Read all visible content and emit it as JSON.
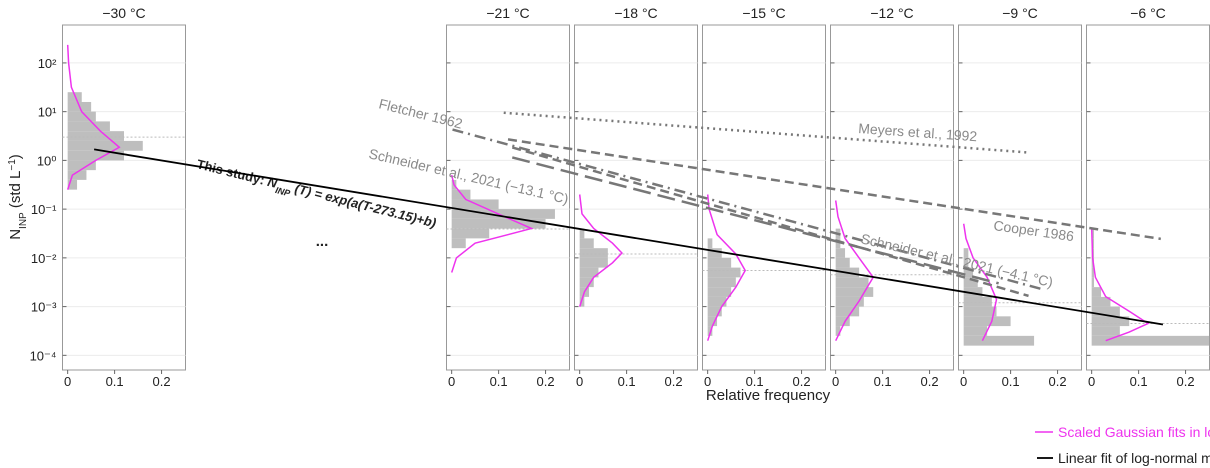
{
  "chart_data": {
    "type": "histogram",
    "ylabel": {
      "text": "N",
      "subscript": "INP",
      "unit": " (std L",
      "superscript": "−1",
      "close": ")"
    },
    "xlabel": "Relative frequency",
    "ylim": [
      5e-05,
      600
    ],
    "yticks": [
      {
        "value": 0.0001,
        "label": "10⁻⁴"
      },
      {
        "value": 0.001,
        "label": "10⁻³"
      },
      {
        "value": 0.01,
        "label": "10⁻²"
      },
      {
        "value": 0.1,
        "label": "10⁻¹"
      },
      {
        "value": 1,
        "label": "10⁰"
      },
      {
        "value": 10,
        "label": "10¹"
      },
      {
        "value": 100,
        "label": "10²"
      }
    ],
    "log_scale": true,
    "grid": true,
    "xlim": [
      -0.011,
      0.251
    ],
    "xticks": [
      0,
      0.1,
      0.2
    ],
    "bar_color": "#bebebe",
    "fit_color": "#ee33ee",
    "median_color": "#bbbbbb",
    "panels": [
      {
        "title": "−30 °C",
        "temperature": -30,
        "median": 3,
        "bins": [
          0.251,
          0.398,
          0.631,
          1,
          1.58,
          2.51,
          3.98,
          6.31,
          10,
          15.8,
          25.1
        ],
        "counts": [
          0.02,
          0.04,
          0.06,
          0.12,
          0.16,
          0.12,
          0.09,
          0.06,
          0.05,
          0.03
        ],
        "fit": {
          "values": [
            0.251,
            0.5,
            1,
            1.86,
            3.98,
            10,
            31.6,
            100,
            234
          ],
          "frequency": [
            0,
            0.01,
            0.06,
            0.11,
            0.07,
            0.03,
            0.008,
            0.002,
            0
          ]
        }
      },
      {
        "title": "−21 °C",
        "temperature": -21,
        "median": 0.039,
        "bins": [
          0.0158,
          0.0251,
          0.0398,
          0.0631,
          0.1,
          0.158,
          0.251,
          0.398
        ],
        "counts": [
          0.03,
          0.08,
          0.2,
          0.22,
          0.1,
          0.04,
          0.01
        ],
        "fit": {
          "values": [
            0.005,
            0.01,
            0.02,
            0.04,
            0.079,
            0.158,
            0.316,
            0.5
          ],
          "frequency": [
            0,
            0.01,
            0.05,
            0.17,
            0.1,
            0.03,
            0.005,
            0
          ]
        }
      },
      {
        "title": "−18 °C",
        "temperature": -18,
        "median": 0.012,
        "bins": [
          0.001,
          0.00158,
          0.00251,
          0.00398,
          0.00631,
          0.01,
          0.0158,
          0.0251,
          0.0398
        ],
        "counts": [
          0.01,
          0.02,
          0.03,
          0.04,
          0.06,
          0.06,
          0.03,
          0.01
        ],
        "fit": {
          "values": [
            0.001,
            0.002,
            0.004,
            0.0079,
            0.0126,
            0.02,
            0.04,
            0.08,
            0.2
          ],
          "frequency": [
            0,
            0.01,
            0.03,
            0.07,
            0.09,
            0.07,
            0.03,
            0.005,
            0
          ]
        }
      },
      {
        "title": "−15 °C",
        "temperature": -15,
        "median": 0.0055,
        "bins": [
          0.000251,
          0.000398,
          0.000631,
          0.001,
          0.00158,
          0.00251,
          0.00398,
          0.00631,
          0.01,
          0.0158,
          0.0251
        ],
        "counts": [
          0.01,
          0.02,
          0.03,
          0.04,
          0.05,
          0.06,
          0.07,
          0.05,
          0.03,
          0.01
        ],
        "fit": {
          "values": [
            0.0002,
            0.0004,
            0.001,
            0.0025,
            0.0055,
            0.012,
            0.03,
            0.1,
            0.2
          ],
          "frequency": [
            0,
            0.01,
            0.03,
            0.06,
            0.08,
            0.06,
            0.02,
            0.003,
            0
          ]
        }
      },
      {
        "title": "−12 °C",
        "temperature": -12,
        "median": 0.0045,
        "bins": [
          0.000251,
          0.000398,
          0.000631,
          0.001,
          0.00158,
          0.00251,
          0.00398,
          0.00631,
          0.01,
          0.0158,
          0.0251,
          0.0398
        ],
        "counts": [
          0.01,
          0.03,
          0.05,
          0.06,
          0.08,
          0.07,
          0.05,
          0.03,
          0.02,
          0.01,
          0.01
        ],
        "fit": {
          "values": [
            0.0002,
            0.0005,
            0.0013,
            0.004,
            0.01,
            0.025,
            0.07,
            0.15
          ],
          "frequency": [
            0,
            0.02,
            0.05,
            0.08,
            0.05,
            0.02,
            0.005,
            0
          ]
        }
      },
      {
        "title": "−9 °C",
        "temperature": -9,
        "median": 0.0012,
        "bins": [
          0.000158,
          0.000251,
          0.000398,
          0.000631,
          0.001,
          0.00158,
          0.00251,
          0.00398,
          0.00631,
          0.01,
          0.0158
        ],
        "counts": [
          0.15,
          0.05,
          0.1,
          0.07,
          0.06,
          0.04,
          0.03,
          0.02,
          0.01,
          0.01
        ],
        "fit": {
          "values": [
            0.0002,
            0.0005,
            0.0014,
            0.004,
            0.01,
            0.025,
            0.05
          ],
          "frequency": [
            0.04,
            0.06,
            0.07,
            0.05,
            0.02,
            0.005,
            0
          ]
        }
      },
      {
        "title": "−6 °C",
        "temperature": -6,
        "median": 0.00045,
        "bins": [
          0.000158,
          0.000251,
          0.000398,
          0.000631,
          0.001,
          0.00158,
          0.00251,
          0.00398,
          0.00631,
          0.01,
          0.0158,
          0.0251,
          0.0398
        ],
        "counts": [
          0.25,
          0.06,
          0.08,
          0.06,
          0.04,
          0.02,
          0.005,
          0.005,
          0.005,
          0.005,
          0.005,
          0.005
        ],
        "fit": {
          "values": [
            0.0002,
            0.0003,
            0.00045,
            0.0008,
            0.0016,
            0.004,
            0.01,
            0.04
          ],
          "frequency": [
            0.03,
            0.08,
            0.12,
            0.08,
            0.03,
            0.008,
            0.002,
            0
          ]
        }
      }
    ],
    "reference_lines": [
      {
        "name": "Fletcher 1962",
        "dash": "dashdot",
        "temperature": [
          -22.3,
          -8.5
        ],
        "values": [
          4.3,
          0.0023
        ]
      },
      {
        "name": "Meyers et al., 1992",
        "dash": "dotted",
        "temperature": [
          -21.1,
          -8.8
        ],
        "values": [
          9.5,
          1.45
        ]
      },
      {
        "name": "Cooper 1986",
        "dash": "dashed",
        "temperature": [
          -21,
          -5.7
        ],
        "values": [
          2.7,
          0.0245
        ]
      },
      {
        "name": "Schneider et al., 2021 (−13.1 °C)",
        "dash": "longdash",
        "temperature": [
          -20.9,
          -9.5
        ],
        "values": [
          1.15,
          0.003
        ]
      },
      {
        "name": "Schneider et al., 2021 (−4.1 °C)",
        "dash": "dashed",
        "temperature": [
          -20.9,
          -8.8
        ],
        "values": [
          1.84,
          0.00166
        ]
      }
    ],
    "linear_fit": {
      "name": "Linear fit of log-normal median",
      "color": "#000000",
      "temperature": [
        -30.7,
        -5.65
      ],
      "values": [
        1.68,
        0.00043
      ]
    },
    "fit_legend": "Scaled Gaussian fits in logarithmic space",
    "study_label": {
      "prefix": "This study: ",
      "symbol": "N",
      "subscript": "INP",
      "suffix": " (T) = exp(a(T-273.15)+b)"
    },
    "ellipsis": "..."
  }
}
